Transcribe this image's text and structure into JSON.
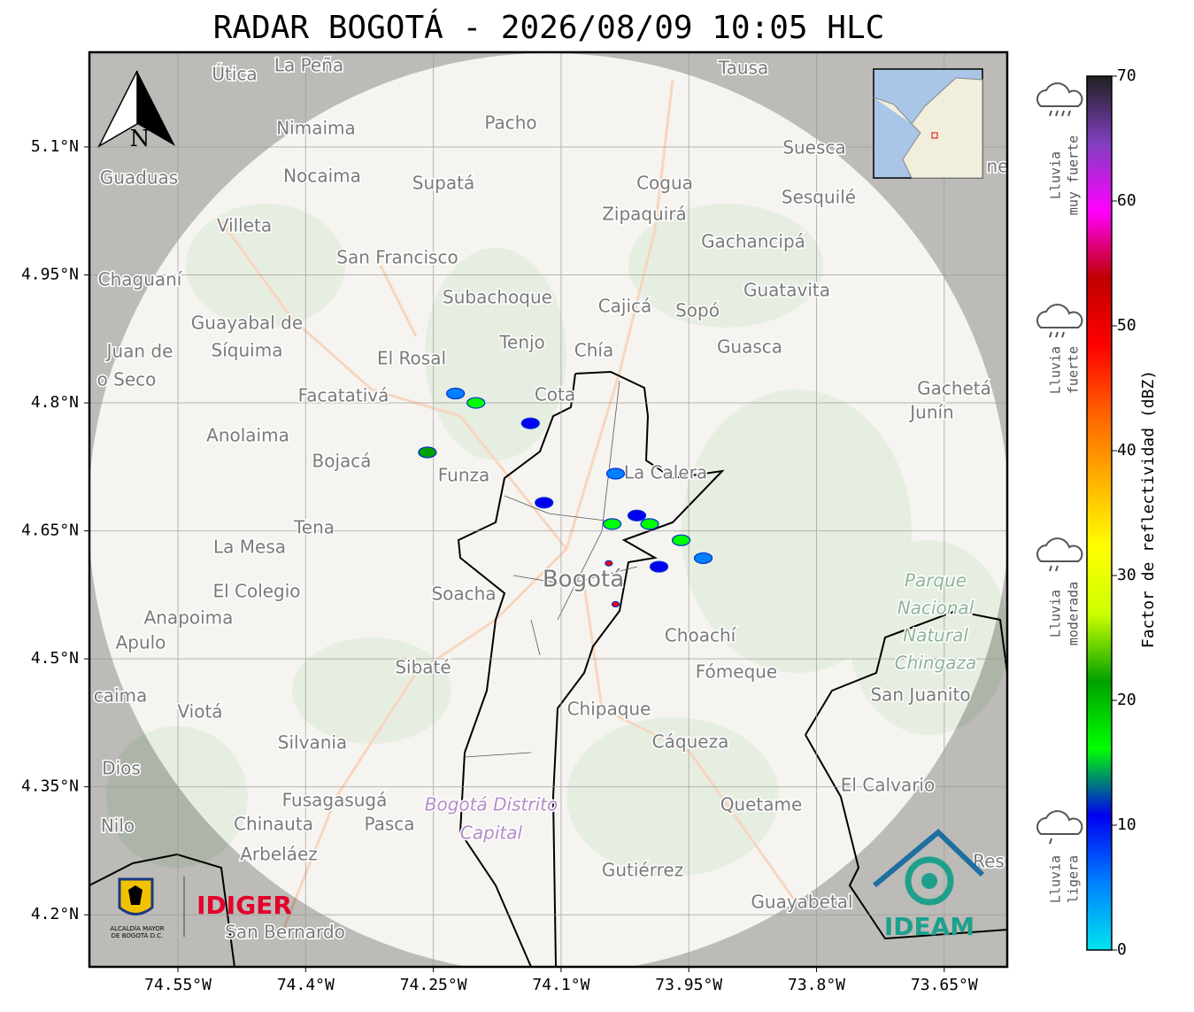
{
  "title": "RADAR BOGOTÁ - 2026/08/09 10:05 HLC",
  "lonlim": [
    -74.654,
    -73.576
  ],
  "latlim": [
    4.139,
    5.211
  ],
  "lonticks": [
    {
      "value": -74.55,
      "label": "74.55°W"
    },
    {
      "value": -74.4,
      "label": "74.4°W"
    },
    {
      "value": -74.25,
      "label": "74.25°W"
    },
    {
      "value": -74.1,
      "label": "74.1°W"
    },
    {
      "value": -73.95,
      "label": "73.95°W"
    },
    {
      "value": -73.8,
      "label": "73.8°W"
    },
    {
      "value": -73.65,
      "label": "73.65°W"
    }
  ],
  "latticks": [
    {
      "value": 5.1,
      "label": "5.1°N"
    },
    {
      "value": 4.95,
      "label": "4.95°N"
    },
    {
      "value": 4.8,
      "label": "4.8°N"
    },
    {
      "value": 4.65,
      "label": "4.65°N"
    },
    {
      "value": 4.5,
      "label": "4.5°N"
    },
    {
      "value": 4.35,
      "label": "4.35°N"
    },
    {
      "value": 4.2,
      "label": "4.2°N"
    }
  ],
  "north": "N",
  "places": [
    "Útica",
    "La Peña",
    "Tausa",
    "Pacho",
    "Nimaima",
    "Guaduas",
    "Nocaima",
    "Supatá",
    "Cogua",
    "Suesca",
    "Sesquilé",
    "Zipaquirá",
    "Villeta",
    "Gachancipá",
    "San Francisco",
    "Chaguaní",
    "Guatavita",
    "Subachoque",
    "Cajicá",
    "Sopó",
    "Guayabal de",
    "Síquima",
    "Tenjo",
    "Chía",
    "Guasca",
    "El Rosal",
    "Juan de",
    "o Seco",
    "Facatativá",
    "Cota",
    "Gachetá",
    "Junín",
    "Anolaima",
    "Bojacá",
    "Funza",
    "La Calera",
    "Tena",
    "La Mesa",
    "El Colegio",
    "Soacha",
    "Bogotá",
    "Anapoima",
    "Apulo",
    "Choachí",
    "Sibaté",
    "Fómeque",
    "San Juanito",
    "caima",
    "Viotá",
    "Chipaque",
    "Silvania",
    "Cáqueza",
    "Dios",
    "El Calvario",
    "Fusagasugá",
    "Quetame",
    "Nilo",
    "Chinauta",
    "Pasca",
    "Arbeláez",
    "Gutiérrez",
    "Guayabetal",
    "San Bernardo",
    "Res",
    "ne"
  ],
  "park": [
    "Parque",
    "Nacional",
    "Natural",
    "Chingaza"
  ],
  "district": [
    "Bogotá Distrito",
    "Capital"
  ],
  "echoes": [
    {
      "lon": -74.257,
      "lat": 4.742,
      "dbz": 20
    },
    {
      "lon": -74.2,
      "lat": 4.8,
      "dbz": 18
    },
    {
      "lon": -74.224,
      "lat": 4.811,
      "dbz": 8
    },
    {
      "lon": -74.136,
      "lat": 4.776,
      "dbz": 12
    },
    {
      "lon": -74.12,
      "lat": 4.683,
      "dbz": 10
    },
    {
      "lon": -74.036,
      "lat": 4.717,
      "dbz": 8
    },
    {
      "lon": -74.011,
      "lat": 4.668,
      "dbz": 10
    },
    {
      "lon": -73.996,
      "lat": 4.658,
      "dbz": 18
    },
    {
      "lon": -73.959,
      "lat": 4.639,
      "dbz": 15
    },
    {
      "lon": -73.985,
      "lat": 4.608,
      "dbz": 10
    },
    {
      "lon": -74.04,
      "lat": 4.658,
      "dbz": 15
    },
    {
      "lon": -73.933,
      "lat": 4.618,
      "dbz": 8
    },
    {
      "lon": -74.036,
      "lat": 4.564,
      "dbz": 50
    },
    {
      "lon": -74.044,
      "lat": 4.612,
      "dbz": 50
    }
  ],
  "colorbar": {
    "label": "Factor de reflectividad (dBZ)",
    "lim": [
      0,
      70
    ],
    "ticks": [
      0,
      10,
      20,
      30,
      40,
      50,
      60,
      70
    ],
    "colors": [
      "#00e5ee",
      "#0080ff",
      "#0000f0",
      "#00ff00",
      "#00a000",
      "#ccff00",
      "#ffff00",
      "#ffb000",
      "#ff6000",
      "#ff0000",
      "#c00000",
      "#ff00ff",
      "#8040c0",
      "#202020"
    ]
  },
  "rain_legend": [
    [
      "Lluvia",
      "muy fuerte"
    ],
    [
      "Lluvia",
      "fuerte"
    ],
    [
      "Lluvia",
      "moderada"
    ],
    [
      "Lluvia",
      "ligera"
    ]
  ],
  "logos": {
    "alcaldia": [
      "ALCALDÍA MAYOR",
      "DE BOGOTÁ D.C."
    ],
    "idiger": "IDIGER",
    "ideam": "IDEAM"
  }
}
